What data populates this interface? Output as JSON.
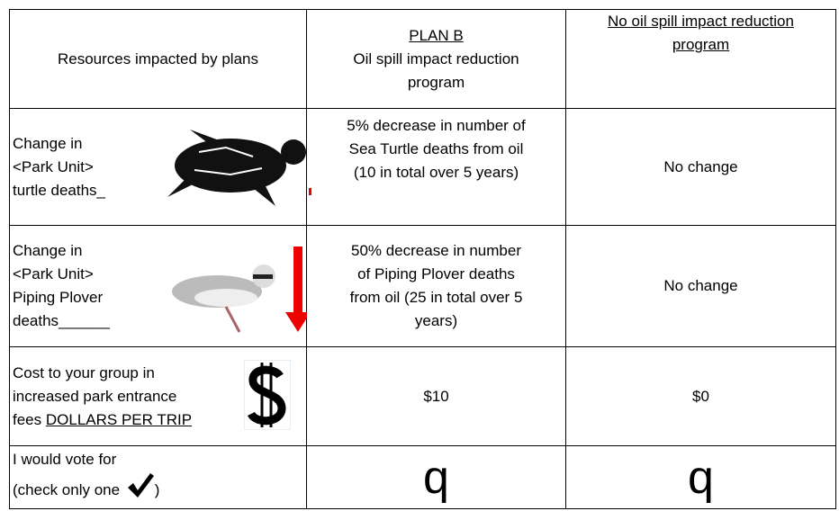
{
  "header": {
    "resource": "Resources impacted by plans",
    "plan_b": {
      "title": "PLAN B",
      "lines": [
        "Oil spill impact reduction",
        "program"
      ]
    },
    "no_program": {
      "lines": [
        "No oil spill impact  reduction",
        "program"
      ]
    }
  },
  "rows": [
    {
      "resource": [
        "Change in",
        "<Park Unit>",
        "turtle deaths_"
      ],
      "plan_b": [
        "5% decrease in number of",
        "Sea Turtle deaths from oil",
        "(10 in total over 5 years)"
      ],
      "no_program": "No change"
    },
    {
      "resource": [
        "Change in",
        "<Park Unit>",
        "Piping Plover",
        "deaths______"
      ],
      "plan_b": [
        "50% decrease in number",
        "of Piping Plover  deaths",
        "from oil (25 in total over 5",
        "years)"
      ],
      "no_program": "No change"
    },
    {
      "resource": [
        "Cost to your group in",
        "increased park entrance",
        "fees "
      ],
      "resource_unit": "DOLLARS PER TRIP",
      "plan_b": "$10",
      "no_program": "$0"
    },
    {
      "resource": [
        "I would vote for",
        "(check only one ",
        ")"
      ],
      "plan_b": "q",
      "no_program": "q"
    }
  ]
}
